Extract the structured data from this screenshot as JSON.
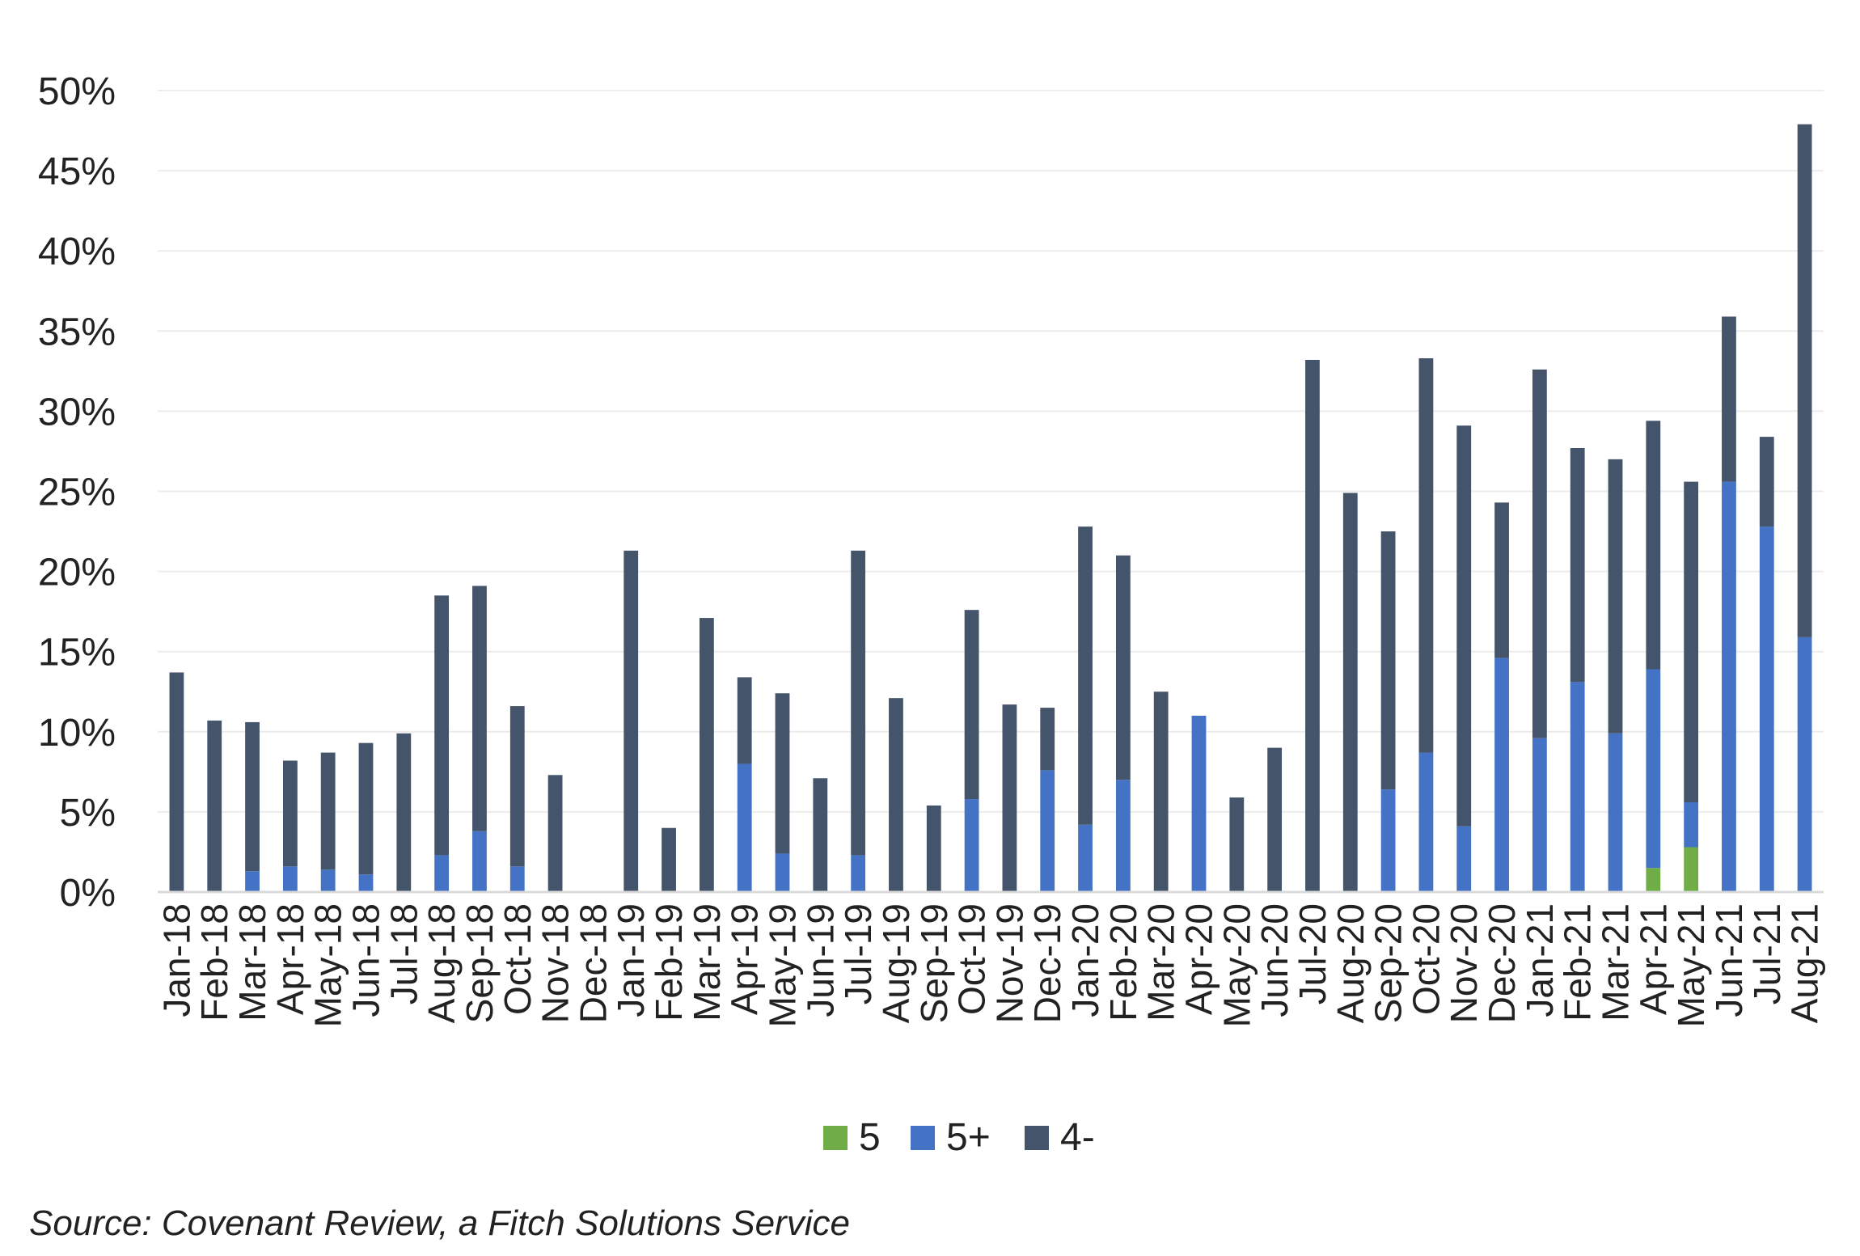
{
  "chart_data": {
    "type": "bar",
    "stacked": true,
    "title": "",
    "xlabel": "",
    "ylabel": "",
    "ylim": [
      0,
      50
    ],
    "y_ticks": [
      "0%",
      "5%",
      "10%",
      "15%",
      "20%",
      "25%",
      "30%",
      "35%",
      "40%",
      "45%",
      "50%"
    ],
    "grid": true,
    "legend_position": "bottom",
    "categories": [
      "Jan-18",
      "Feb-18",
      "Mar-18",
      "Apr-18",
      "May-18",
      "Jun-18",
      "Jul-18",
      "Aug-18",
      "Sep-18",
      "Oct-18",
      "Nov-18",
      "Dec-18",
      "Jan-19",
      "Feb-19",
      "Mar-19",
      "Apr-19",
      "May-19",
      "Jun-19",
      "Jul-19",
      "Aug-19",
      "Sep-19",
      "Oct-19",
      "Nov-19",
      "Dec-19",
      "Jan-20",
      "Feb-20",
      "Mar-20",
      "Apr-20",
      "May-20",
      "Jun-20",
      "Jul-20",
      "Aug-20",
      "Sep-20",
      "Oct-20",
      "Nov-20",
      "Dec-20",
      "Jan-21",
      "Feb-21",
      "Mar-21",
      "Apr-21",
      "May-21",
      "Jun-21",
      "Jul-21",
      "Aug-21"
    ],
    "series": [
      {
        "name": "5",
        "color": "#70ad47",
        "values": [
          0,
          0,
          0,
          0,
          0,
          0,
          0,
          0,
          0,
          0,
          0,
          0,
          0,
          0,
          0,
          0,
          0,
          0,
          0,
          0,
          0,
          0,
          0,
          0,
          0,
          0,
          0,
          0,
          0,
          0,
          0,
          0,
          0,
          0,
          0,
          0,
          0,
          0,
          0,
          1.5,
          2.8,
          0,
          0,
          0
        ]
      },
      {
        "name": "5+",
        "color": "#4472c4",
        "values": [
          0,
          0,
          1.3,
          1.6,
          1.4,
          1.1,
          0,
          2.3,
          3.8,
          1.6,
          0,
          0,
          0,
          0,
          0,
          8.0,
          2.4,
          0,
          2.3,
          0,
          0,
          5.8,
          0,
          7.6,
          4.2,
          7.0,
          0,
          11.0,
          0,
          0,
          0,
          0,
          6.4,
          8.7,
          4.1,
          14.6,
          9.6,
          13.1,
          9.9,
          12.4,
          2.8,
          25.6,
          22.8,
          15.9
        ]
      },
      {
        "name": "4-",
        "color": "#44546a",
        "values": [
          13.7,
          10.7,
          9.3,
          6.6,
          7.3,
          8.2,
          9.9,
          16.2,
          15.3,
          10.0,
          7.3,
          0,
          21.3,
          4.0,
          17.1,
          5.4,
          10.0,
          7.1,
          19.0,
          12.1,
          5.4,
          11.8,
          11.7,
          3.9,
          18.6,
          14.0,
          12.5,
          0,
          5.9,
          9.0,
          33.2,
          24.9,
          16.1,
          24.6,
          25.0,
          9.7,
          23.0,
          14.6,
          17.1,
          15.5,
          20.0,
          10.3,
          5.6,
          32.0
        ]
      }
    ]
  },
  "legend": [
    {
      "label": "5",
      "color": "#70ad47"
    },
    {
      "label": "5+",
      "color": "#4472c4"
    },
    {
      "label": "4-",
      "color": "#44546a"
    }
  ],
  "source": "Source: Covenant Review, a Fitch Solutions Service"
}
